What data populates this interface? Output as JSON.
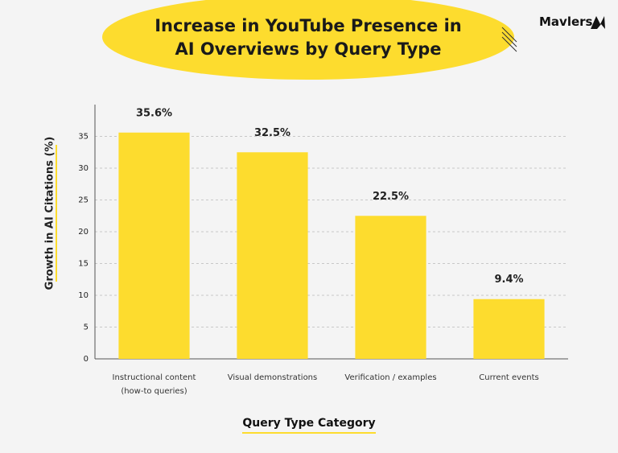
{
  "brand": "Mavlers",
  "chart_data": {
    "type": "bar",
    "title": "Increase in YouTube Presence in AI Overviews by Query Type",
    "x_label": "Query Type Category",
    "y_label": "Growth in AI Citations (%)",
    "categories": [
      "Instructional content\n(how-to queries)",
      "Visual demonstrations",
      "Verification / examples",
      "Current events"
    ],
    "values": [
      35.6,
      32.5,
      22.5,
      9.4
    ],
    "value_labels": [
      "35.6%",
      "32.5%",
      "22.5%",
      "9.4%"
    ],
    "color": "#fddc2e",
    "ylim": [
      0,
      40
    ],
    "yticks": [
      0,
      5,
      10,
      15,
      20,
      25,
      30,
      35
    ],
    "grid": true
  }
}
